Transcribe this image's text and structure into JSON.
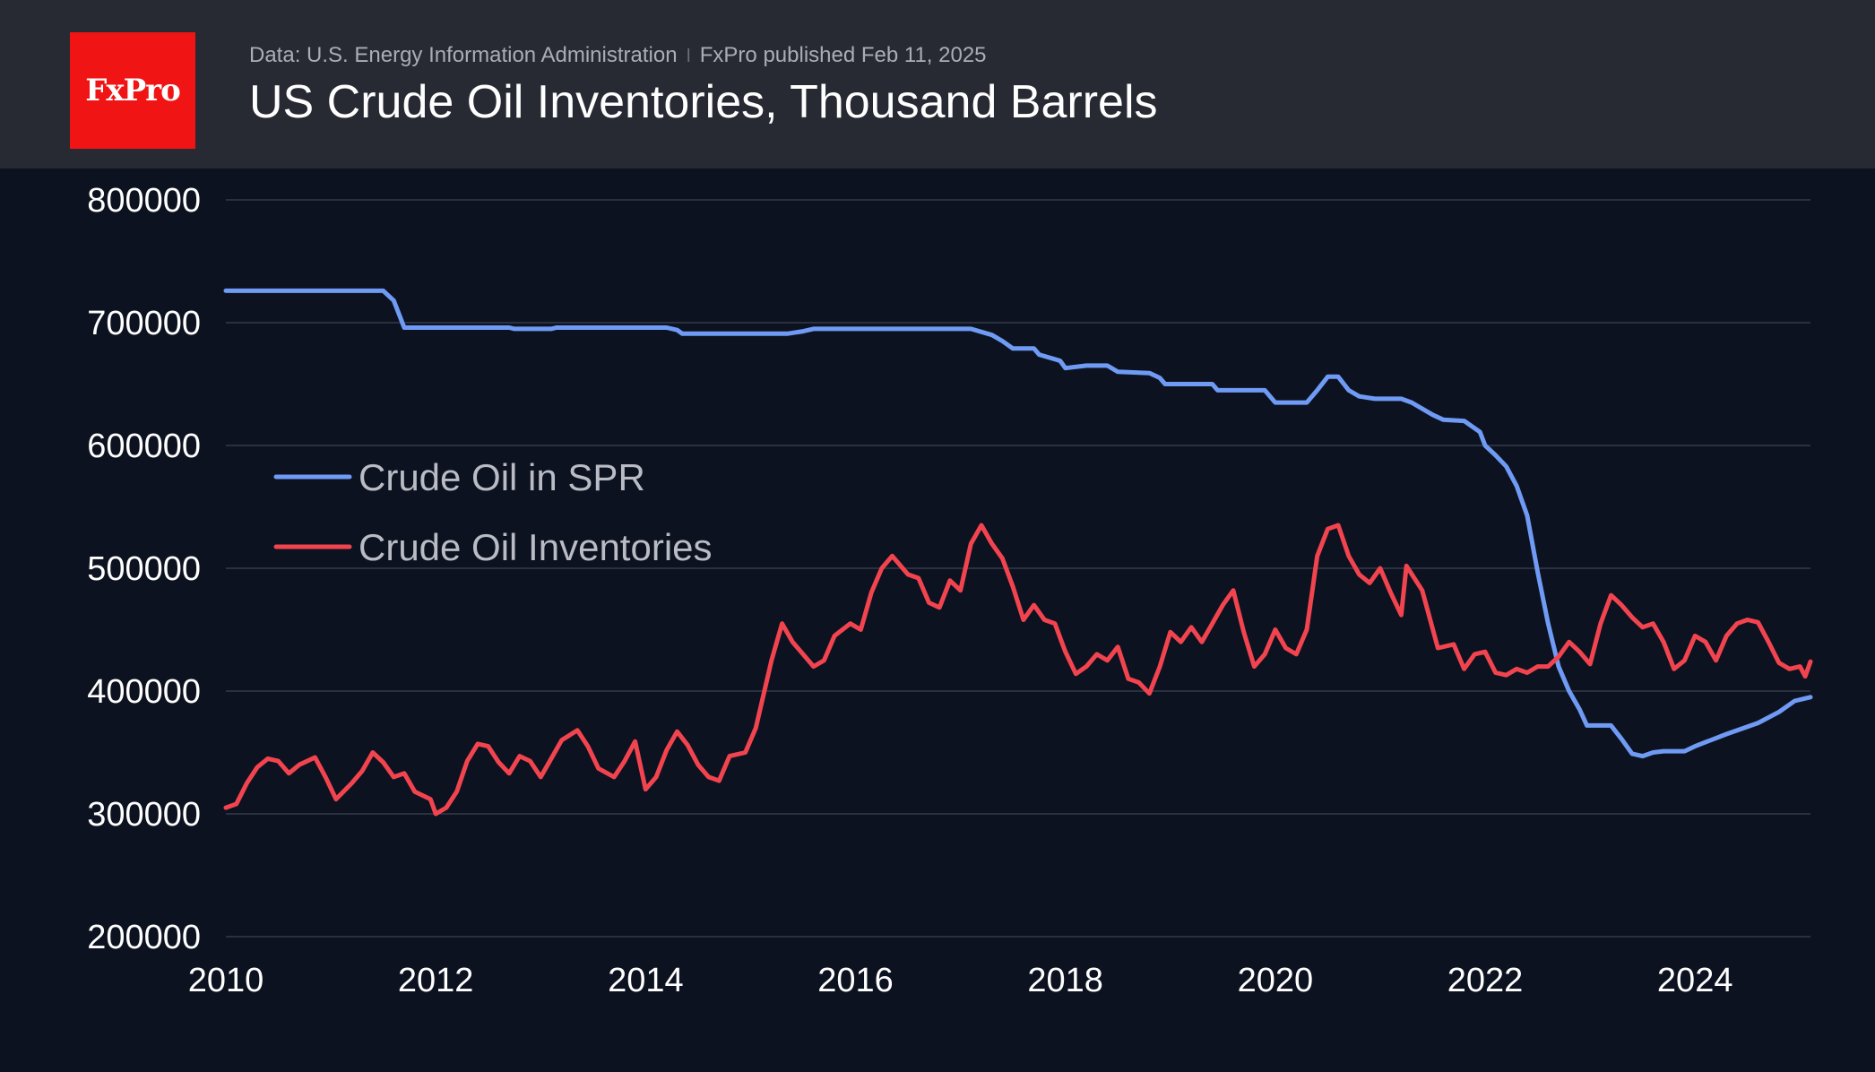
{
  "header": {
    "logo_text": "FxPro",
    "source": "Data: U.S. Energy Information Administration",
    "separator": "ǀ",
    "published": "FxPro published Feb 11, 2025",
    "title": "US Crude Oil Inventories, Thousand Barrels"
  },
  "colors": {
    "background": "#0d1220",
    "header_bg": "#272a33",
    "logo_bg": "#f01414",
    "spr": "#6f9bf5",
    "inventories": "#f2444f",
    "grid": "#2a303d"
  },
  "chart_data": {
    "type": "line",
    "title": "US Crude Oil Inventories, Thousand Barrels",
    "xlabel": "",
    "ylabel": "",
    "xlim": [
      2010,
      2025.1
    ],
    "ylim": [
      200000,
      800000
    ],
    "y_ticks": [
      "800000",
      "700000",
      "600000",
      "500000",
      "400000",
      "300000",
      "200000"
    ],
    "x_ticks": [
      "2010",
      "2012",
      "2014",
      "2016",
      "2018",
      "2020",
      "2022",
      "2024"
    ],
    "grid": true,
    "legend_position": "left",
    "series": [
      {
        "name": "Crude Oil in SPR",
        "color": "#6f9bf5",
        "points": [
          [
            2010.0,
            726000
          ],
          [
            2011.5,
            726000
          ],
          [
            2011.6,
            718000
          ],
          [
            2011.7,
            696000
          ],
          [
            2012.7,
            696000
          ],
          [
            2012.75,
            695000
          ],
          [
            2013.1,
            695000
          ],
          [
            2013.15,
            696000
          ],
          [
            2014.2,
            696000
          ],
          [
            2014.3,
            694000
          ],
          [
            2014.35,
            691000
          ],
          [
            2015.35,
            691000
          ],
          [
            2015.5,
            693000
          ],
          [
            2015.6,
            695000
          ],
          [
            2017.1,
            695000
          ],
          [
            2017.3,
            690000
          ],
          [
            2017.4,
            685000
          ],
          [
            2017.5,
            679000
          ],
          [
            2017.7,
            679000
          ],
          [
            2017.75,
            674000
          ],
          [
            2017.95,
            669000
          ],
          [
            2018.0,
            663000
          ],
          [
            2018.2,
            665000
          ],
          [
            2018.4,
            665000
          ],
          [
            2018.5,
            660000
          ],
          [
            2018.8,
            659000
          ],
          [
            2018.9,
            655000
          ],
          [
            2018.95,
            650000
          ],
          [
            2019.4,
            650000
          ],
          [
            2019.45,
            645000
          ],
          [
            2019.9,
            645000
          ],
          [
            2019.95,
            640000
          ],
          [
            2020.0,
            635000
          ],
          [
            2020.3,
            635000
          ],
          [
            2020.4,
            645000
          ],
          [
            2020.5,
            656000
          ],
          [
            2020.6,
            656000
          ],
          [
            2020.7,
            645000
          ],
          [
            2020.8,
            640000
          ],
          [
            2020.95,
            638000
          ],
          [
            2021.2,
            638000
          ],
          [
            2021.3,
            635000
          ],
          [
            2021.5,
            625000
          ],
          [
            2021.6,
            621000
          ],
          [
            2021.8,
            620000
          ],
          [
            2021.95,
            611000
          ],
          [
            2022.0,
            600000
          ],
          [
            2022.1,
            592000
          ],
          [
            2022.2,
            583000
          ],
          [
            2022.3,
            567000
          ],
          [
            2022.4,
            543000
          ],
          [
            2022.5,
            497000
          ],
          [
            2022.6,
            455000
          ],
          [
            2022.7,
            420000
          ],
          [
            2022.8,
            400000
          ],
          [
            2022.9,
            385000
          ],
          [
            2022.97,
            372000
          ],
          [
            2023.2,
            372000
          ],
          [
            2023.3,
            361000
          ],
          [
            2023.4,
            349000
          ],
          [
            2023.5,
            347000
          ],
          [
            2023.6,
            350000
          ],
          [
            2023.7,
            351000
          ],
          [
            2023.9,
            351000
          ],
          [
            2024.0,
            355000
          ],
          [
            2024.3,
            365000
          ],
          [
            2024.6,
            374000
          ],
          [
            2024.8,
            383000
          ],
          [
            2024.95,
            392000
          ],
          [
            2025.1,
            395000
          ]
        ]
      },
      {
        "name": "Crude Oil Inventories",
        "color": "#f2444f",
        "points": [
          [
            2010.0,
            305000
          ],
          [
            2010.1,
            308000
          ],
          [
            2010.2,
            325000
          ],
          [
            2010.3,
            338000
          ],
          [
            2010.4,
            345000
          ],
          [
            2010.5,
            343000
          ],
          [
            2010.6,
            333000
          ],
          [
            2010.7,
            340000
          ],
          [
            2010.85,
            346000
          ],
          [
            2010.95,
            330000
          ],
          [
            2011.05,
            312000
          ],
          [
            2011.2,
            325000
          ],
          [
            2011.3,
            335000
          ],
          [
            2011.4,
            350000
          ],
          [
            2011.5,
            342000
          ],
          [
            2011.6,
            330000
          ],
          [
            2011.7,
            333000
          ],
          [
            2011.8,
            318000
          ],
          [
            2011.95,
            312000
          ],
          [
            2012.0,
            300000
          ],
          [
            2012.1,
            305000
          ],
          [
            2012.2,
            318000
          ],
          [
            2012.3,
            343000
          ],
          [
            2012.4,
            357000
          ],
          [
            2012.5,
            355000
          ],
          [
            2012.6,
            342000
          ],
          [
            2012.7,
            333000
          ],
          [
            2012.8,
            347000
          ],
          [
            2012.9,
            343000
          ],
          [
            2013.0,
            330000
          ],
          [
            2013.1,
            345000
          ],
          [
            2013.2,
            360000
          ],
          [
            2013.35,
            368000
          ],
          [
            2013.45,
            355000
          ],
          [
            2013.55,
            337000
          ],
          [
            2013.7,
            330000
          ],
          [
            2013.8,
            343000
          ],
          [
            2013.9,
            359000
          ],
          [
            2014.0,
            320000
          ],
          [
            2014.1,
            330000
          ],
          [
            2014.2,
            352000
          ],
          [
            2014.3,
            367000
          ],
          [
            2014.4,
            356000
          ],
          [
            2014.5,
            340000
          ],
          [
            2014.6,
            330000
          ],
          [
            2014.7,
            327000
          ],
          [
            2014.8,
            347000
          ],
          [
            2014.95,
            350000
          ],
          [
            2015.05,
            370000
          ],
          [
            2015.2,
            425000
          ],
          [
            2015.3,
            455000
          ],
          [
            2015.4,
            440000
          ],
          [
            2015.5,
            430000
          ],
          [
            2015.6,
            420000
          ],
          [
            2015.7,
            425000
          ],
          [
            2015.8,
            445000
          ],
          [
            2015.95,
            455000
          ],
          [
            2016.05,
            450000
          ],
          [
            2016.15,
            480000
          ],
          [
            2016.25,
            500000
          ],
          [
            2016.35,
            510000
          ],
          [
            2016.5,
            495000
          ],
          [
            2016.6,
            492000
          ],
          [
            2016.7,
            472000
          ],
          [
            2016.8,
            468000
          ],
          [
            2016.9,
            490000
          ],
          [
            2017.0,
            482000
          ],
          [
            2017.1,
            520000
          ],
          [
            2017.2,
            535000
          ],
          [
            2017.3,
            520000
          ],
          [
            2017.4,
            508000
          ],
          [
            2017.5,
            485000
          ],
          [
            2017.6,
            458000
          ],
          [
            2017.7,
            470000
          ],
          [
            2017.8,
            458000
          ],
          [
            2017.9,
            455000
          ],
          [
            2018.0,
            432000
          ],
          [
            2018.1,
            414000
          ],
          [
            2018.2,
            420000
          ],
          [
            2018.3,
            430000
          ],
          [
            2018.4,
            425000
          ],
          [
            2018.5,
            436000
          ],
          [
            2018.6,
            410000
          ],
          [
            2018.7,
            407000
          ],
          [
            2018.8,
            398000
          ],
          [
            2018.9,
            420000
          ],
          [
            2019.0,
            448000
          ],
          [
            2019.1,
            440000
          ],
          [
            2019.2,
            452000
          ],
          [
            2019.3,
            440000
          ],
          [
            2019.4,
            455000
          ],
          [
            2019.5,
            470000
          ],
          [
            2019.6,
            482000
          ],
          [
            2019.7,
            448000
          ],
          [
            2019.8,
            420000
          ],
          [
            2019.9,
            430000
          ],
          [
            2020.0,
            450000
          ],
          [
            2020.1,
            435000
          ],
          [
            2020.2,
            430000
          ],
          [
            2020.3,
            450000
          ],
          [
            2020.4,
            510000
          ],
          [
            2020.5,
            532000
          ],
          [
            2020.6,
            535000
          ],
          [
            2020.7,
            510000
          ],
          [
            2020.8,
            495000
          ],
          [
            2020.9,
            488000
          ],
          [
            2021.0,
            500000
          ],
          [
            2021.1,
            480000
          ],
          [
            2021.2,
            462000
          ],
          [
            2021.25,
            502000
          ],
          [
            2021.4,
            482000
          ],
          [
            2021.55,
            435000
          ],
          [
            2021.7,
            438000
          ],
          [
            2021.8,
            418000
          ],
          [
            2021.9,
            430000
          ],
          [
            2022.0,
            432000
          ],
          [
            2022.1,
            415000
          ],
          [
            2022.2,
            413000
          ],
          [
            2022.3,
            418000
          ],
          [
            2022.4,
            415000
          ],
          [
            2022.5,
            420000
          ],
          [
            2022.6,
            420000
          ],
          [
            2022.7,
            428000
          ],
          [
            2022.8,
            440000
          ],
          [
            2022.9,
            432000
          ],
          [
            2023.0,
            422000
          ],
          [
            2023.1,
            455000
          ],
          [
            2023.2,
            478000
          ],
          [
            2023.3,
            470000
          ],
          [
            2023.4,
            460000
          ],
          [
            2023.5,
            452000
          ],
          [
            2023.6,
            455000
          ],
          [
            2023.7,
            440000
          ],
          [
            2023.8,
            418000
          ],
          [
            2023.9,
            425000
          ],
          [
            2024.0,
            445000
          ],
          [
            2024.1,
            440000
          ],
          [
            2024.2,
            425000
          ],
          [
            2024.3,
            445000
          ],
          [
            2024.4,
            455000
          ],
          [
            2024.5,
            458000
          ],
          [
            2024.6,
            456000
          ],
          [
            2024.7,
            440000
          ],
          [
            2024.8,
            423000
          ],
          [
            2024.9,
            418000
          ],
          [
            2025.0,
            420000
          ],
          [
            2025.05,
            412000
          ],
          [
            2025.1,
            424000
          ]
        ]
      }
    ]
  }
}
